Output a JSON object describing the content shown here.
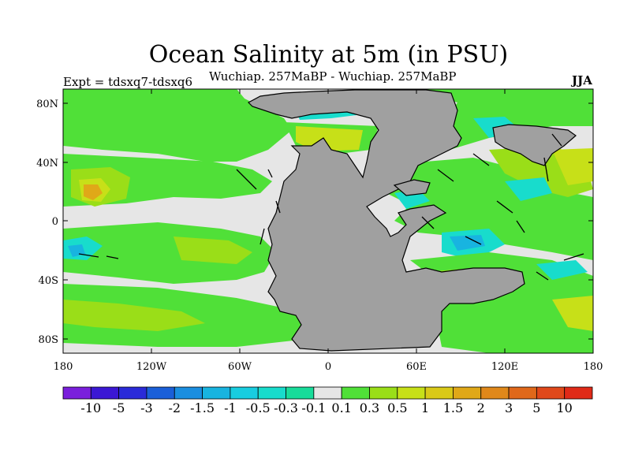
{
  "title": "Ocean Salinity at 5m (in PSU)",
  "subtitle": "Wuchiap. 257MaBP - Wuchiap. 257MaBP",
  "experiment": "Expt = tdsxq7-tdsxq6",
  "season": "JJA",
  "map": {
    "y_ticks": [
      "80N",
      "40N",
      "0",
      "40S",
      "80S"
    ],
    "x_ticks": [
      "180",
      "120W",
      "60W",
      "0",
      "60E",
      "120E",
      "180"
    ],
    "land_color": "#a0a0a0",
    "near_zero_color": "#e6e6e6"
  },
  "colorbar": {
    "colors": [
      "#7a1fdc",
      "#3b17d4",
      "#2a2ad8",
      "#1a5fd8",
      "#1a8ee0",
      "#18b4e0",
      "#18cde0",
      "#18dccc",
      "#18dc9a",
      "#e6e6e6",
      "#50e038",
      "#9ade18",
      "#c7e018",
      "#d9c918",
      "#e0a818",
      "#e0881a",
      "#e0681a",
      "#e0481a",
      "#e02a18"
    ],
    "labels": [
      "-10",
      "-5",
      "-3",
      "-2",
      "-1.5",
      "-1",
      "-0.5",
      "-0.3",
      "-0.1",
      "0.1",
      "0.3",
      "0.5",
      "1",
      "1.5",
      "2",
      "3",
      "5",
      "10"
    ]
  }
}
